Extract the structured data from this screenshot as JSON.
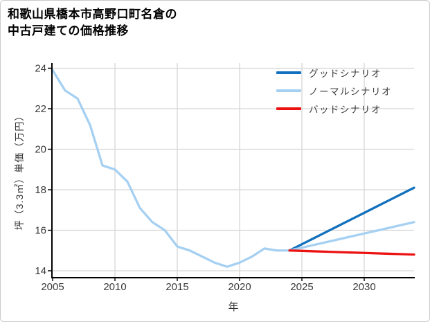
{
  "header": {
    "title_lines": [
      "和歌山県橋本市高野口町名倉の",
      "中古戸建ての価格推移"
    ]
  },
  "chart_data": {
    "type": "line",
    "title": "和歌山県橋本市高野口町名倉の中古戸建ての価格推移",
    "xlabel": "年",
    "ylabel": "坪（3.3㎡）単価（万円）",
    "x_ticks": [
      2005,
      2010,
      2015,
      2020,
      2025,
      2030
    ],
    "x_tick_labels": [
      "2005",
      "2010",
      "2015",
      "2020",
      "2025",
      "2030"
    ],
    "y_ticks": [
      14,
      16,
      18,
      20,
      22,
      24
    ],
    "y_tick_labels": [
      "14",
      "16",
      "18",
      "20",
      "22",
      "24"
    ],
    "xlim": [
      2005,
      2034.3
    ],
    "ylim": [
      13.66,
      24.26
    ],
    "grid": true,
    "legend_position": "upper right",
    "forecast_start": 2024,
    "colors": {
      "good": "#1170bd",
      "normal": "#a5d0f2",
      "bad": "#ec1212",
      "gridline": "#d6d6d6",
      "axis": "#000000",
      "tick_text": "#3a3a3a"
    },
    "series": [
      {
        "name": "グッドシナリオ",
        "color": "#1170bd",
        "x": [
          2024,
          2025,
          2026,
          2027,
          2028,
          2029,
          2030,
          2031,
          2032,
          2033,
          2034
        ],
        "values": [
          15.0,
          15.31,
          15.62,
          15.93,
          16.24,
          16.55,
          16.86,
          17.17,
          17.48,
          17.79,
          18.1
        ]
      },
      {
        "name": "ノーマルシナリオ",
        "color": "#a5d0f2",
        "x": [
          2005,
          2006,
          2007,
          2008,
          2009,
          2010,
          2011,
          2012,
          2013,
          2014,
          2015,
          2016,
          2017,
          2018,
          2019,
          2020,
          2021,
          2022,
          2023,
          2024,
          2025,
          2026,
          2027,
          2028,
          2029,
          2030,
          2031,
          2032,
          2033,
          2034
        ],
        "values": [
          23.9,
          22.9,
          22.5,
          21.2,
          19.2,
          19.0,
          18.4,
          17.1,
          16.4,
          16.0,
          15.2,
          15.0,
          14.7,
          14.4,
          14.2,
          14.4,
          14.7,
          15.1,
          15.0,
          15.0,
          15.14,
          15.28,
          15.42,
          15.56,
          15.7,
          15.84,
          15.98,
          16.12,
          16.26,
          16.4
        ]
      },
      {
        "name": "バッドシナリオ",
        "color": "#ec1212",
        "x": [
          2024,
          2025,
          2026,
          2027,
          2028,
          2029,
          2030,
          2031,
          2032,
          2033,
          2034
        ],
        "values": [
          15.0,
          14.98,
          14.96,
          14.94,
          14.92,
          14.9,
          14.88,
          14.86,
          14.84,
          14.82,
          14.8
        ]
      }
    ]
  }
}
